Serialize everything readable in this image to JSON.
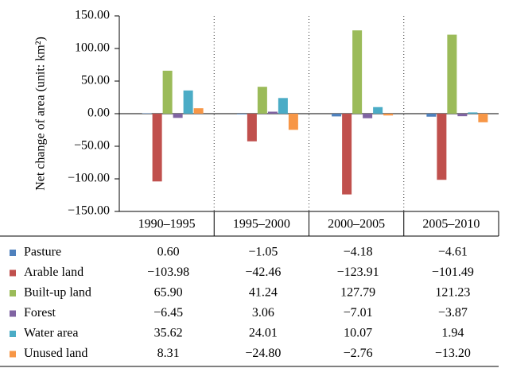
{
  "chart_data": {
    "type": "bar",
    "y_label": "Net change of area (unit: km²)",
    "categories": [
      "1990–1995",
      "1995–2000",
      "2000–2005",
      "2005–2010"
    ],
    "ylim": [
      -150,
      150
    ],
    "yticks": [
      {
        "value": -150,
        "label": "−150.00"
      },
      {
        "value": -100,
        "label": "−100.00"
      },
      {
        "value": -50,
        "label": "−50.00"
      },
      {
        "value": 0,
        "label": "0.00"
      },
      {
        "value": 50,
        "label": "50.00"
      },
      {
        "value": 100,
        "label": "100.00"
      },
      {
        "value": 150,
        "label": "150.00"
      }
    ],
    "series": [
      {
        "name": "Pasture",
        "color": "#4f81bd",
        "values": [
          0.6,
          -1.05,
          -4.18,
          -4.61
        ],
        "value_labels": [
          "0.60",
          "−1.05",
          "−4.18",
          "−4.61"
        ]
      },
      {
        "name": "Arable land",
        "color": "#c0504d",
        "values": [
          -103.98,
          -42.46,
          -123.91,
          -101.49
        ],
        "value_labels": [
          "−103.98",
          "−42.46",
          "−123.91",
          "−101.49"
        ]
      },
      {
        "name": "Built-up land",
        "color": "#9bbb59",
        "values": [
          65.9,
          41.24,
          127.79,
          121.23
        ],
        "value_labels": [
          "65.90",
          "41.24",
          "127.79",
          "121.23"
        ]
      },
      {
        "name": "Forest",
        "color": "#8064a2",
        "values": [
          -6.45,
          3.06,
          -7.01,
          -3.87
        ],
        "value_labels": [
          "−6.45",
          "3.06",
          "−7.01",
          "−3.87"
        ]
      },
      {
        "name": "Water area",
        "color": "#4bacc6",
        "values": [
          35.62,
          24.01,
          10.07,
          1.94
        ],
        "value_labels": [
          "35.62",
          "24.01",
          "10.07",
          "1.94"
        ]
      },
      {
        "name": "Unused land",
        "color": "#f79646",
        "values": [
          8.31,
          -24.8,
          -2.76,
          -13.2
        ],
        "value_labels": [
          "8.31",
          "−24.80",
          "−2.76",
          "−13.20"
        ]
      }
    ]
  }
}
